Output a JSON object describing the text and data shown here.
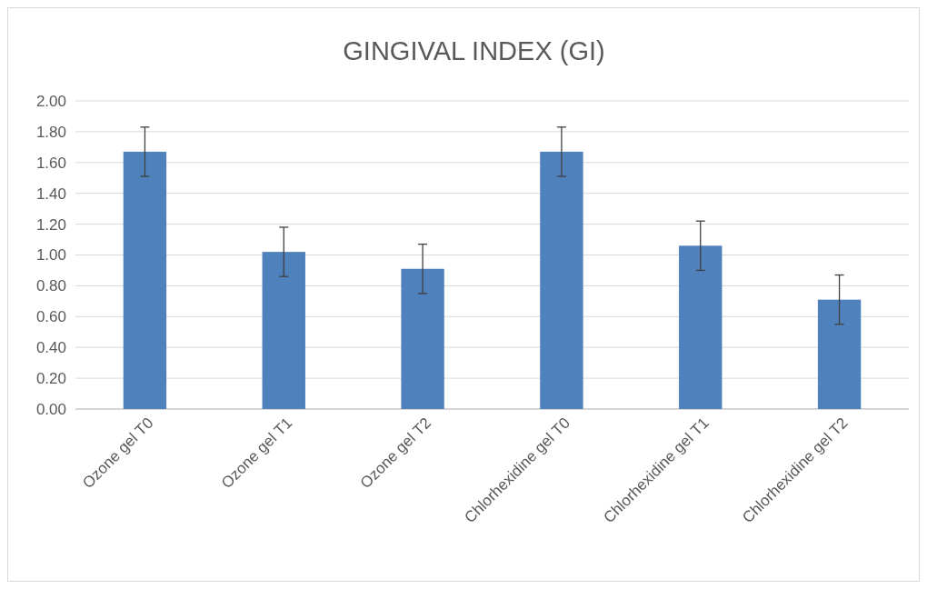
{
  "chart_data": {
    "type": "bar",
    "title": "GINGIVAL INDEX (GI)",
    "categories": [
      "Ozone gel T0",
      "Ozone gel T1",
      "Ozone gel T2",
      "Chlorhexidine gel T0",
      "Chlorhexidine gel T1",
      "Chlorhexidine gel T2"
    ],
    "values": [
      1.67,
      1.02,
      0.91,
      1.67,
      1.06,
      0.71
    ],
    "errors": [
      0.16,
      0.16,
      0.16,
      0.16,
      0.16,
      0.16
    ],
    "color": "#4f81bd",
    "ylim": [
      0,
      2
    ],
    "yticks": [
      {
        "value": 0,
        "label": "0.00"
      },
      {
        "value": 0.2,
        "label": "0.20"
      },
      {
        "value": 0.4,
        "label": "0.40"
      },
      {
        "value": 0.6,
        "label": "0.60"
      },
      {
        "value": 0.8,
        "label": "0.80"
      },
      {
        "value": 1,
        "label": "1.00"
      },
      {
        "value": 1.2,
        "label": "1.20"
      },
      {
        "value": 1.4,
        "label": "1.40"
      },
      {
        "value": 1.6,
        "label": "1.60"
      },
      {
        "value": 1.8,
        "label": "1.80"
      },
      {
        "value": 2,
        "label": "2.00"
      }
    ],
    "grid": "y"
  }
}
